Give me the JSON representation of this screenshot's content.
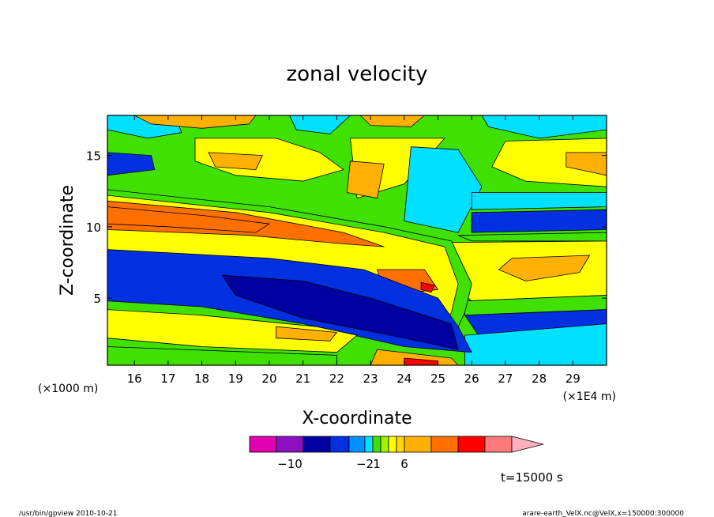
{
  "chart_data": {
    "type": "heatmap",
    "title": "zonal velocity",
    "xlabel": "X-coordinate",
    "ylabel": "Z-coordinate",
    "x_units_left": "(×1000 m)",
    "x_units_right": "(×1E4 m)",
    "xlim": [
      15.2,
      30.0
    ],
    "ylim": [
      0.3,
      17.8
    ],
    "x_ticks": [
      16,
      17,
      18,
      19,
      20,
      21,
      22,
      23,
      24,
      25,
      26,
      27,
      28,
      29
    ],
    "y_ticks": [
      5,
      10,
      15
    ],
    "time_label": "t=15000 s",
    "colorbar": {
      "colors": [
        "#e000b0",
        "#8a10c0",
        "#0000a0",
        "#0030e0",
        "#0090ff",
        "#00e0ff",
        "#40e000",
        "#a0f000",
        "#ffff00",
        "#ffd700",
        "#ffb000",
        "#ff7000",
        "#ff0000",
        "#ff7a7a",
        "#ffb0c0"
      ],
      "labels": [
        {
          "text": "−10",
          "segment": 1.5
        },
        {
          "text": "−2",
          "segment": 5.0
        },
        {
          "text": "1",
          "segment": 6.5
        },
        {
          "text": "6",
          "segment": 10.0
        }
      ]
    },
    "bands": [
      {
        "name": "cyan-top-left",
        "points": [
          [
            15.2,
            17.8
          ],
          [
            17.2,
            17.8
          ],
          [
            17.4,
            16.6
          ],
          [
            16.4,
            16.2
          ],
          [
            15.2,
            16.8
          ]
        ],
        "color": "#00e0ff"
      },
      {
        "name": "orange-top-left",
        "points": [
          [
            16.0,
            17.8
          ],
          [
            19.6,
            17.8
          ],
          [
            19.4,
            17.2
          ],
          [
            18.0,
            16.9
          ],
          [
            16.5,
            17.2
          ]
        ],
        "color": "#ffb000"
      },
      {
        "name": "cyan-top-mid",
        "points": [
          [
            20.6,
            17.8
          ],
          [
            22.4,
            17.8
          ],
          [
            21.8,
            16.5
          ],
          [
            20.8,
            16.8
          ]
        ],
        "color": "#00e0ff"
      },
      {
        "name": "orange-top-mid",
        "points": [
          [
            22.7,
            17.8
          ],
          [
            24.6,
            17.8
          ],
          [
            24.2,
            17.0
          ],
          [
            23.0,
            17.1
          ]
        ],
        "color": "#ffb000"
      },
      {
        "name": "cyan-top-right",
        "points": [
          [
            26.3,
            17.8
          ],
          [
            30.0,
            17.8
          ],
          [
            30.0,
            16.8
          ],
          [
            28.0,
            16.2
          ],
          [
            26.5,
            17.0
          ]
        ],
        "color": "#00e0ff"
      },
      {
        "name": "blue-left-upper",
        "points": [
          [
            15.2,
            15.2
          ],
          [
            16.5,
            15.0
          ],
          [
            16.6,
            14.0
          ],
          [
            15.2,
            13.6
          ]
        ],
        "color": "#0030e0"
      },
      {
        "name": "yellow-upper-arc",
        "points": [
          [
            17.8,
            16.2
          ],
          [
            20.2,
            16.2
          ],
          [
            21.5,
            15.2
          ],
          [
            22.2,
            14.0
          ],
          [
            21.0,
            13.2
          ],
          [
            19.0,
            13.6
          ],
          [
            17.8,
            14.6
          ]
        ],
        "color": "#ffff00"
      },
      {
        "name": "orange-upper-left",
        "points": [
          [
            18.2,
            15.2
          ],
          [
            19.8,
            15.0
          ],
          [
            19.6,
            14.0
          ],
          [
            18.4,
            14.2
          ]
        ],
        "color": "#ffb000"
      },
      {
        "name": "yellow-upper-right",
        "points": [
          [
            22.4,
            16.2
          ],
          [
            25.2,
            16.2
          ],
          [
            24.0,
            13.0
          ],
          [
            22.6,
            12.0
          ]
        ],
        "color": "#ffff00"
      },
      {
        "name": "orange-upper-mid",
        "points": [
          [
            22.4,
            14.6
          ],
          [
            23.4,
            14.4
          ],
          [
            23.2,
            12.0
          ],
          [
            22.3,
            12.4
          ]
        ],
        "color": "#ffb000"
      },
      {
        "name": "cyan-mid-right",
        "points": [
          [
            24.2,
            15.6
          ],
          [
            25.6,
            15.4
          ],
          [
            26.3,
            12.8
          ],
          [
            25.6,
            9.6
          ],
          [
            24.0,
            10.4
          ]
        ],
        "color": "#00e0ff"
      },
      {
        "name": "yellow-right-upper",
        "points": [
          [
            27.0,
            16.0
          ],
          [
            30.0,
            16.2
          ],
          [
            30.0,
            12.8
          ],
          [
            27.6,
            13.2
          ],
          [
            26.6,
            14.2
          ]
        ],
        "color": "#ffff00"
      },
      {
        "name": "orange-right-upper",
        "points": [
          [
            28.8,
            15.2
          ],
          [
            30.0,
            15.2
          ],
          [
            30.0,
            13.6
          ],
          [
            28.8,
            14.2
          ]
        ],
        "color": "#ffb000"
      },
      {
        "name": "cyan-right-mid",
        "points": [
          [
            26.0,
            12.4
          ],
          [
            30.0,
            12.4
          ],
          [
            30.0,
            11.4
          ],
          [
            26.0,
            11.2
          ]
        ],
        "color": "#00e0ff"
      },
      {
        "name": "blue-right-mid",
        "points": [
          [
            26.0,
            11.0
          ],
          [
            30.0,
            11.2
          ],
          [
            30.0,
            9.8
          ],
          [
            26.0,
            9.6
          ]
        ],
        "color": "#0030e0"
      },
      {
        "name": "green-right-lower",
        "points": [
          [
            25.6,
            9.4
          ],
          [
            30.0,
            9.6
          ],
          [
            30.0,
            9.0
          ],
          [
            26.0,
            9.0
          ]
        ],
        "color": "#40e000"
      },
      {
        "name": "yellow-right-lower",
        "points": [
          [
            25.4,
            8.9
          ],
          [
            30.0,
            9.0
          ],
          [
            30.0,
            5.2
          ],
          [
            26.0,
            4.8
          ],
          [
            25.4,
            6.0
          ]
        ],
        "color": "#ffff00"
      },
      {
        "name": "orange-right-lower",
        "points": [
          [
            27.2,
            7.8
          ],
          [
            29.5,
            8.0
          ],
          [
            29.2,
            6.8
          ],
          [
            27.6,
            6.2
          ],
          [
            26.8,
            7.0
          ]
        ],
        "color": "#ffb000"
      },
      {
        "name": "green-right-deep",
        "points": [
          [
            25.8,
            4.8
          ],
          [
            30.0,
            5.2
          ],
          [
            30.0,
            4.2
          ],
          [
            25.8,
            3.8
          ]
        ],
        "color": "#40e000"
      },
      {
        "name": "blue-right-deep",
        "points": [
          [
            25.8,
            3.8
          ],
          [
            30.0,
            4.2
          ],
          [
            30.0,
            3.2
          ],
          [
            26.2,
            2.4
          ]
        ],
        "color": "#0030e0"
      },
      {
        "name": "cyan-right-bottom",
        "points": [
          [
            25.8,
            2.4
          ],
          [
            30.0,
            3.2
          ],
          [
            30.0,
            0.3
          ],
          [
            25.8,
            0.3
          ]
        ],
        "color": "#00e0ff"
      },
      {
        "name": "green-jet-outer",
        "points": [
          [
            15.2,
            12.6
          ],
          [
            20.0,
            11.4
          ],
          [
            23.4,
            10.0
          ],
          [
            25.4,
            9.0
          ],
          [
            26.0,
            6.0
          ],
          [
            25.8,
            4.0
          ],
          [
            25.4,
            2.0
          ],
          [
            22.0,
            3.4
          ],
          [
            18.0,
            5.0
          ],
          [
            15.2,
            5.6
          ]
        ],
        "color": "#40e000"
      },
      {
        "name": "yellow-jet",
        "points": [
          [
            15.2,
            12.2
          ],
          [
            20.0,
            11.0
          ],
          [
            23.4,
            9.6
          ],
          [
            25.2,
            8.6
          ],
          [
            25.6,
            6.0
          ],
          [
            25.4,
            4.0
          ],
          [
            25.0,
            2.5
          ],
          [
            22.0,
            3.8
          ],
          [
            18.0,
            5.4
          ],
          [
            15.2,
            6.0
          ]
        ],
        "color": "#ffff00"
      },
      {
        "name": "orange-jet",
        "points": [
          [
            15.2,
            11.8
          ],
          [
            19.0,
            11.0
          ],
          [
            22.2,
            9.6
          ],
          [
            23.4,
            8.6
          ],
          [
            22.2,
            8.8
          ],
          [
            19.4,
            9.4
          ],
          [
            15.2,
            9.8
          ]
        ],
        "color": "#ff7000"
      },
      {
        "name": "orange-jet-core",
        "points": [
          [
            15.2,
            11.4
          ],
          [
            18.0,
            10.8
          ],
          [
            20.0,
            10.2
          ],
          [
            19.6,
            9.6
          ],
          [
            17.0,
            10.0
          ],
          [
            15.2,
            10.2
          ]
        ],
        "color": "#ff7000"
      },
      {
        "name": "orange-right-blob",
        "points": [
          [
            23.2,
            7.0
          ],
          [
            24.6,
            7.0
          ],
          [
            25.0,
            5.6
          ],
          [
            23.4,
            5.2
          ]
        ],
        "color": "#ff7000"
      },
      {
        "name": "red-right-blob",
        "points": [
          [
            24.5,
            6.1
          ],
          [
            24.9,
            5.9
          ],
          [
            24.8,
            5.4
          ],
          [
            24.5,
            5.6
          ]
        ],
        "color": "#ff0000"
      },
      {
        "name": "blue-jet",
        "points": [
          [
            15.2,
            8.4
          ],
          [
            20.0,
            7.8
          ],
          [
            22.8,
            7.0
          ],
          [
            25.0,
            5.0
          ],
          [
            25.6,
            3.0
          ],
          [
            26.0,
            1.2
          ],
          [
            24.0,
            1.6
          ],
          [
            21.0,
            3.2
          ],
          [
            18.0,
            4.4
          ],
          [
            15.2,
            4.8
          ]
        ],
        "color": "#0030e0"
      },
      {
        "name": "navy-jet-core",
        "points": [
          [
            18.6,
            6.6
          ],
          [
            21.0,
            6.2
          ],
          [
            23.0,
            5.0
          ],
          [
            25.4,
            3.2
          ],
          [
            25.6,
            1.4
          ],
          [
            23.6,
            2.4
          ],
          [
            21.0,
            3.6
          ],
          [
            19.0,
            5.2
          ]
        ],
        "color": "#0000a0"
      },
      {
        "name": "yellow-lower-left",
        "points": [
          [
            15.2,
            4.2
          ],
          [
            18.0,
            3.8
          ],
          [
            21.4,
            3.0
          ],
          [
            22.6,
            2.4
          ],
          [
            22.0,
            1.2
          ],
          [
            18.0,
            1.6
          ],
          [
            15.2,
            2.2
          ]
        ],
        "color": "#ffff00"
      },
      {
        "name": "orange-lower-left",
        "points": [
          [
            20.2,
            3.0
          ],
          [
            22.0,
            2.6
          ],
          [
            21.8,
            2.0
          ],
          [
            20.2,
            2.2
          ]
        ],
        "color": "#ffb000"
      },
      {
        "name": "green-bottom-left",
        "points": [
          [
            15.2,
            1.6
          ],
          [
            22.0,
            1.0
          ],
          [
            22.0,
            0.3
          ],
          [
            15.2,
            0.3
          ]
        ],
        "color": "#40e000"
      },
      {
        "name": "orange-bottom-mid",
        "points": [
          [
            23.2,
            1.4
          ],
          [
            25.4,
            0.8
          ],
          [
            25.6,
            0.3
          ],
          [
            23.0,
            0.3
          ]
        ],
        "color": "#ffb000"
      },
      {
        "name": "red-bottom-mid",
        "points": [
          [
            24.0,
            0.8
          ],
          [
            25.0,
            0.6
          ],
          [
            25.0,
            0.3
          ],
          [
            24.0,
            0.3
          ]
        ],
        "color": "#ff0000"
      }
    ]
  },
  "footer": {
    "left_text": "/usr/bin/gpview   2010-10-21",
    "right_text": "arare-earth_VelX.nc@VelX,x=150000:300000"
  }
}
